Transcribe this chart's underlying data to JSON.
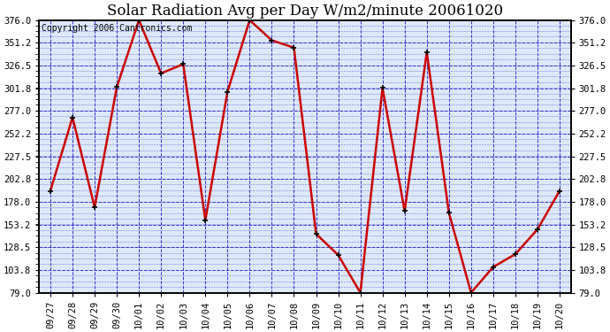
{
  "title": "Solar Radiation Avg per Day W/m2/minute 20061020",
  "copyright": "Copyright 2006 Cantronics.com",
  "x_labels": [
    "09/27",
    "09/28",
    "09/29",
    "09/30",
    "10/01",
    "10/02",
    "10/03",
    "10/04",
    "10/05",
    "10/06",
    "10/07",
    "10/08",
    "10/09",
    "10/10",
    "10/11",
    "10/12",
    "10/13",
    "10/14",
    "10/15",
    "10/16",
    "10/17",
    "10/18",
    "10/19",
    "10/20"
  ],
  "y_values": [
    190,
    270,
    172,
    303,
    376,
    318,
    328,
    158,
    298,
    376,
    354,
    346,
    143,
    120,
    79,
    302,
    168,
    341,
    166,
    79,
    107,
    121,
    148,
    190
  ],
  "y_ticks": [
    79.0,
    103.8,
    128.5,
    153.2,
    178.0,
    202.8,
    227.5,
    252.2,
    277.0,
    301.8,
    326.5,
    351.2,
    376.0
  ],
  "ylim": [
    79.0,
    376.0
  ],
  "line_color": "#cc0000",
  "marker_color": "#000000",
  "outer_bg_color": "#ffffff",
  "plot_bg_color": "#dde8f8",
  "grid_color": "#3333cc",
  "title_fontsize": 12,
  "copyright_fontsize": 7,
  "tick_fontsize": 7.5,
  "figwidth": 6.9,
  "figheight": 3.75,
  "dpi": 100
}
